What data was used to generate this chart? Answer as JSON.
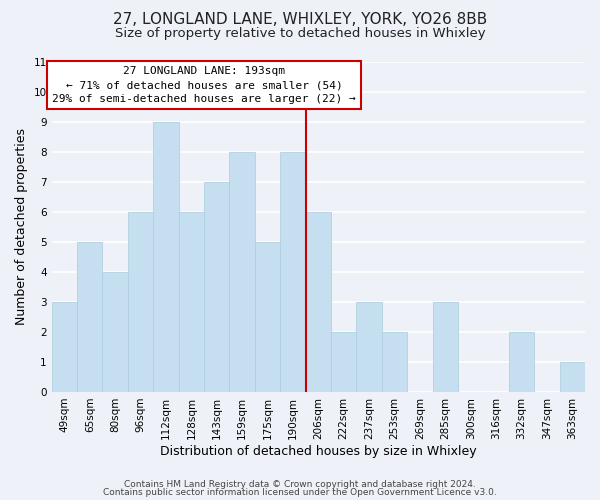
{
  "title": "27, LONGLAND LANE, WHIXLEY, YORK, YO26 8BB",
  "subtitle": "Size of property relative to detached houses in Whixley",
  "xlabel": "Distribution of detached houses by size in Whixley",
  "ylabel": "Number of detached properties",
  "bar_labels": [
    "49sqm",
    "65sqm",
    "80sqm",
    "96sqm",
    "112sqm",
    "128sqm",
    "143sqm",
    "159sqm",
    "175sqm",
    "190sqm",
    "206sqm",
    "222sqm",
    "237sqm",
    "253sqm",
    "269sqm",
    "285sqm",
    "300sqm",
    "316sqm",
    "332sqm",
    "347sqm",
    "363sqm"
  ],
  "bar_heights": [
    3,
    5,
    4,
    6,
    9,
    6,
    7,
    8,
    5,
    8,
    6,
    2,
    3,
    2,
    0,
    3,
    0,
    0,
    2,
    0,
    1
  ],
  "bar_color": "#c5dff0",
  "bar_edgecolor": "#c5dff0",
  "vline_x_index": 9,
  "vline_color": "#cc0000",
  "ylim": [
    0,
    11
  ],
  "yticks": [
    0,
    1,
    2,
    3,
    4,
    5,
    6,
    7,
    8,
    9,
    10,
    11
  ],
  "annotation_title": "27 LONGLAND LANE: 193sqm",
  "annotation_line1": "← 71% of detached houses are smaller (54)",
  "annotation_line2": "29% of semi-detached houses are larger (22) →",
  "annotation_box_color": "#ffffff",
  "annotation_box_edgecolor": "#cc0000",
  "footer1": "Contains HM Land Registry data © Crown copyright and database right 2024.",
  "footer2": "Contains public sector information licensed under the Open Government Licence v3.0.",
  "background_color": "#eef2f8",
  "grid_color": "#ffffff",
  "title_fontsize": 11,
  "subtitle_fontsize": 9.5,
  "axis_label_fontsize": 9,
  "tick_fontsize": 7.5,
  "annotation_fontsize": 8,
  "footer_fontsize": 6.5
}
